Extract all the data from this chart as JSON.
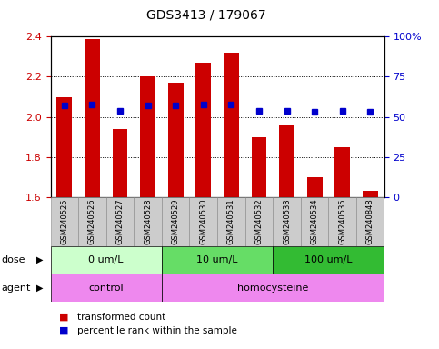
{
  "title": "GDS3413 / 179067",
  "samples": [
    "GSM240525",
    "GSM240526",
    "GSM240527",
    "GSM240528",
    "GSM240529",
    "GSM240530",
    "GSM240531",
    "GSM240532",
    "GSM240533",
    "GSM240534",
    "GSM240535",
    "GSM240848"
  ],
  "red_values": [
    2.1,
    2.39,
    1.94,
    2.2,
    2.17,
    2.27,
    2.32,
    1.9,
    1.96,
    1.7,
    1.85,
    1.63
  ],
  "blue_values": [
    57,
    58,
    54,
    57,
    57,
    58,
    58,
    54,
    54,
    53,
    54,
    53
  ],
  "ymin": 1.6,
  "ymax": 2.4,
  "yticks": [
    1.6,
    1.8,
    2.0,
    2.2,
    2.4
  ],
  "y2min": 0,
  "y2max": 100,
  "y2ticks": [
    0,
    25,
    50,
    75,
    100
  ],
  "y2ticklabels": [
    "0",
    "25",
    "50",
    "75",
    "100%"
  ],
  "bar_color": "#cc0000",
  "dot_color": "#0000cc",
  "dose_groups": [
    {
      "label": "0 um/L",
      "start": 0,
      "end": 4,
      "color": "#ccffcc"
    },
    {
      "label": "10 um/L",
      "start": 4,
      "end": 8,
      "color": "#66dd66"
    },
    {
      "label": "100 um/L",
      "start": 8,
      "end": 12,
      "color": "#33bb33"
    }
  ],
  "agent_groups": [
    {
      "label": "control",
      "start": 0,
      "end": 4,
      "color": "#ee88ee"
    },
    {
      "label": "homocysteine",
      "start": 4,
      "end": 12,
      "color": "#ee88ee"
    }
  ],
  "legend_red": "transformed count",
  "legend_blue": "percentile rank within the sample",
  "tick_label_color_left": "#cc0000",
  "tick_label_color_right": "#0000cc",
  "title_color": "#000000",
  "xtick_bg": "#cccccc",
  "xtick_edge": "#888888"
}
